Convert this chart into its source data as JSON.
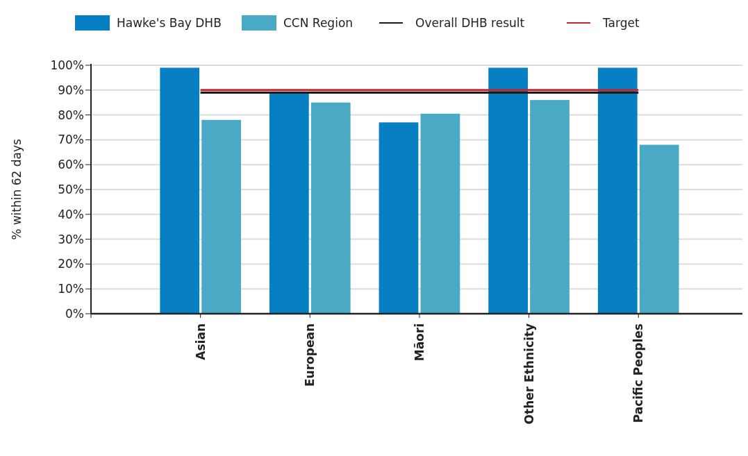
{
  "chart_data": {
    "type": "bar",
    "ylabel": "% within 62 days",
    "categories": [
      "Asian",
      "European",
      "Māori",
      "Other Ethnicity",
      "Pacific Peoples"
    ],
    "series": [
      {
        "name": "Hawke's Bay DHB",
        "color": "#0680c2",
        "values": [
          99,
          89,
          77,
          99,
          99
        ]
      },
      {
        "name": "CCN Region",
        "color": "#4aaac6",
        "values": [
          78,
          85,
          80.5,
          86,
          68
        ]
      },
      {
        "name": "Overall DHB result",
        "type": "line",
        "color": "#1a1a1a",
        "values": [
          89,
          89,
          89,
          89,
          89
        ]
      },
      {
        "name": "Target",
        "type": "line",
        "color": "#c0272d",
        "values": [
          90,
          90,
          90,
          90,
          90
        ]
      }
    ],
    "ylim": [
      0,
      100
    ],
    "yticks": [
      {
        "value": 0,
        "label": "0%"
      },
      {
        "value": 10,
        "label": "10%"
      },
      {
        "value": 20,
        "label": "20%"
      },
      {
        "value": 30,
        "label": "30%"
      },
      {
        "value": 40,
        "label": "40%"
      },
      {
        "value": 50,
        "label": "50%"
      },
      {
        "value": 60,
        "label": "60%"
      },
      {
        "value": 70,
        "label": "70%"
      },
      {
        "value": 80,
        "label": "80%"
      },
      {
        "value": 90,
        "label": "90%"
      },
      {
        "value": 100,
        "label": "100%"
      }
    ],
    "grid": "y",
    "legend": "top",
    "marker": "none",
    "line_style": "solid"
  }
}
